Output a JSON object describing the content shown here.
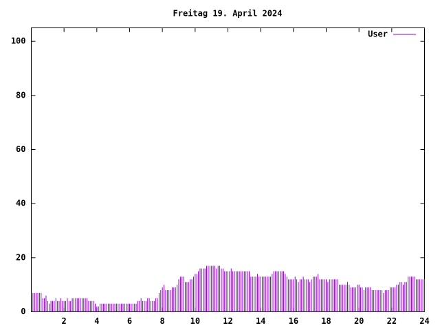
{
  "chart_data": {
    "type": "impulse",
    "title": "Freitag 19. April 2024",
    "xlim": [
      0,
      24
    ],
    "ylim": [
      0,
      105
    ],
    "xticks": [
      2,
      4,
      6,
      8,
      10,
      12,
      14,
      16,
      18,
      20,
      22,
      24
    ],
    "yticks": [
      0,
      20,
      40,
      60,
      80,
      100
    ],
    "legend": "upper right",
    "x": [
      0.1,
      0.2,
      0.3,
      0.4,
      0.5,
      0.6,
      0.7,
      0.8,
      0.9,
      1,
      1.1,
      1.2,
      1.3,
      1.4,
      1.5,
      1.6,
      1.7,
      1.8,
      1.9,
      2,
      2.1,
      2.2,
      2.3,
      2.4,
      2.5,
      2.6,
      2.7,
      2.8,
      2.9,
      3,
      3.1,
      3.2,
      3.3,
      3.4,
      3.5,
      3.6,
      3.7,
      3.8,
      3.9,
      4,
      4.1,
      4.2,
      4.3,
      4.4,
      4.5,
      4.6,
      4.7,
      4.8,
      4.9,
      5,
      5.1,
      5.2,
      5.3,
      5.4,
      5.5,
      5.6,
      5.7,
      5.8,
      5.9,
      6,
      6.1,
      6.2,
      6.3,
      6.4,
      6.5,
      6.6,
      6.7,
      6.8,
      6.9,
      7,
      7.1,
      7.2,
      7.3,
      7.4,
      7.5,
      7.6,
      7.7,
      7.8,
      7.9,
      8,
      8.1,
      8.2,
      8.3,
      8.4,
      8.5,
      8.6,
      8.7,
      8.8,
      8.9,
      9,
      9.1,
      9.2,
      9.3,
      9.4,
      9.5,
      9.6,
      9.7,
      9.8,
      9.9,
      10,
      10.1,
      10.2,
      10.3,
      10.4,
      10.5,
      10.6,
      10.7,
      10.8,
      10.9,
      11,
      11.1,
      11.2,
      11.3,
      11.4,
      11.5,
      11.6,
      11.7,
      11.8,
      11.9,
      12,
      12.1,
      12.2,
      12.3,
      12.4,
      12.5,
      12.6,
      12.7,
      12.8,
      12.9,
      13,
      13.1,
      13.2,
      13.3,
      13.4,
      13.5,
      13.6,
      13.7,
      13.8,
      13.9,
      14,
      14.1,
      14.2,
      14.3,
      14.4,
      14.5,
      14.6,
      14.7,
      14.8,
      14.9,
      15,
      15.1,
      15.2,
      15.3,
      15.4,
      15.5,
      15.6,
      15.7,
      15.8,
      15.9,
      16,
      16.1,
      16.2,
      16.3,
      16.4,
      16.5,
      16.6,
      16.7,
      16.8,
      16.9,
      17,
      17.1,
      17.2,
      17.3,
      17.4,
      17.5,
      17.6,
      17.7,
      17.8,
      17.9,
      18,
      18.1,
      18.2,
      18.3,
      18.4,
      18.5,
      18.6,
      18.7,
      18.8,
      18.9,
      19,
      19.1,
      19.2,
      19.3,
      19.4,
      19.5,
      19.6,
      19.7,
      19.8,
      19.9,
      20,
      20.1,
      20.2,
      20.3,
      20.4,
      20.5,
      20.6,
      20.7,
      20.8,
      20.9,
      21,
      21.1,
      21.2,
      21.3,
      21.4,
      21.5,
      21.6,
      21.7,
      21.8,
      21.9,
      22,
      22.1,
      22.2,
      22.3,
      22.4,
      22.5,
      22.6,
      22.7,
      22.8,
      22.9,
      23,
      23.1,
      23.2,
      23.3,
      23.4,
      23.5,
      23.6,
      23.7,
      23.8,
      23.9,
      24
    ],
    "series": [
      {
        "name": "User",
        "color": "#9400d3",
        "values": [
          7,
          7,
          7,
          7,
          7,
          7,
          5,
          5,
          6,
          4,
          3,
          4,
          4,
          4,
          5,
          4,
          4,
          5,
          4,
          4,
          4,
          5,
          4,
          4,
          5,
          5,
          5,
          5,
          5,
          5,
          5,
          5,
          5,
          5,
          4,
          4,
          4,
          4,
          3,
          2,
          2,
          3,
          3,
          3,
          3,
          3,
          3,
          3,
          3,
          3,
          3,
          3,
          3,
          3,
          3,
          3,
          3,
          3,
          3,
          3,
          3,
          3,
          3,
          3,
          4,
          4,
          5,
          4,
          4,
          4,
          5,
          5,
          4,
          4,
          4,
          5,
          5,
          7,
          8,
          9,
          10,
          8,
          8,
          8,
          8,
          9,
          9,
          9,
          10,
          12,
          13,
          13,
          13,
          11,
          11,
          11,
          12,
          12,
          13,
          14,
          14,
          15,
          16,
          16,
          16,
          16,
          17,
          17,
          17,
          17,
          17,
          17,
          16,
          17,
          17,
          16,
          16,
          15,
          15,
          15,
          15,
          16,
          15,
          15,
          15,
          15,
          15,
          15,
          15,
          15,
          15,
          15,
          15,
          13,
          13,
          13,
          13,
          14,
          13,
          13,
          13,
          13,
          13,
          13,
          13,
          13,
          14,
          15,
          15,
          15,
          15,
          15,
          15,
          15,
          14,
          13,
          12,
          12,
          12,
          12,
          13,
          12,
          11,
          12,
          12,
          13,
          12,
          12,
          12,
          11,
          12,
          13,
          13,
          13,
          14,
          12,
          12,
          12,
          12,
          12,
          11,
          12,
          12,
          12,
          12,
          12,
          12,
          10,
          10,
          10,
          10,
          10,
          11,
          10,
          9,
          9,
          9,
          9,
          10,
          10,
          9,
          9,
          8,
          9,
          9,
          9,
          9,
          8,
          8,
          8,
          8,
          8,
          8,
          8,
          7,
          8,
          8,
          8,
          9,
          9,
          9,
          9,
          10,
          10,
          11,
          11,
          10,
          11,
          11,
          13,
          13,
          13,
          13,
          13,
          12,
          12,
          12,
          12,
          12,
          12
        ]
      }
    ]
  }
}
